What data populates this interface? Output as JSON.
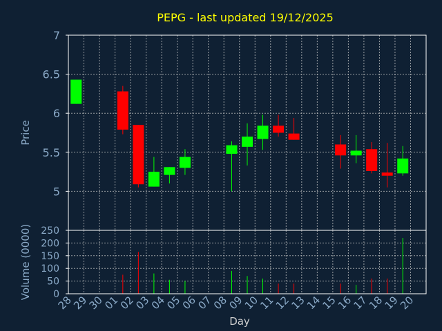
{
  "title": "PEPG - last updated 19/12/2025",
  "colors": {
    "background": "#0f2033",
    "plot_border": "#ffffff",
    "grid": "#c8c8c8",
    "title": "#ffff00",
    "axis_text": "#8aa9c7",
    "up": "#00ff00",
    "down": "#ff0000"
  },
  "chart_data": [
    {
      "type": "candlestick",
      "ylabel": "Price",
      "ylim": [
        4.5,
        7
      ],
      "yticks": [
        5,
        5.5,
        6,
        6.5,
        7
      ],
      "ytick_labels": [
        "5",
        "5.5",
        "6",
        "6.5",
        "7"
      ],
      "grid": true,
      "x_labels": [
        "28",
        "29",
        "30",
        "01",
        "02",
        "03",
        "04",
        "05",
        "06",
        "07",
        "08",
        "09",
        "10",
        "11",
        "12",
        "13",
        "14",
        "15",
        "16",
        "17",
        "18",
        "19",
        "20"
      ],
      "candles": [
        {
          "x": "28",
          "open": 6.12,
          "high": 6.43,
          "low": 6.12,
          "close": 6.43
        },
        {
          "x": "01",
          "open": 6.28,
          "high": 6.35,
          "low": 5.73,
          "close": 5.79
        },
        {
          "x": "02",
          "open": 5.85,
          "high": 5.85,
          "low": 5.05,
          "close": 5.09
        },
        {
          "x": "03",
          "open": 5.06,
          "high": 5.44,
          "low": 5.06,
          "close": 5.25
        },
        {
          "x": "04",
          "open": 5.21,
          "high": 5.31,
          "low": 5.1,
          "close": 5.31
        },
        {
          "x": "05",
          "open": 5.3,
          "high": 5.54,
          "low": 5.21,
          "close": 5.44
        },
        {
          "x": "08",
          "open": 5.48,
          "high": 5.64,
          "low": 5.0,
          "close": 5.59
        },
        {
          "x": "09",
          "open": 5.57,
          "high": 5.87,
          "low": 5.33,
          "close": 5.7
        },
        {
          "x": "10",
          "open": 5.67,
          "high": 5.98,
          "low": 5.53,
          "close": 5.84
        },
        {
          "x": "11",
          "open": 5.84,
          "high": 5.98,
          "low": 5.7,
          "close": 5.75
        },
        {
          "x": "12",
          "open": 5.74,
          "high": 5.94,
          "low": 5.66,
          "close": 5.66
        },
        {
          "x": "15",
          "open": 5.6,
          "high": 5.72,
          "low": 5.29,
          "close": 5.46
        },
        {
          "x": "16",
          "open": 5.46,
          "high": 5.72,
          "low": 5.36,
          "close": 5.52
        },
        {
          "x": "17",
          "open": 5.54,
          "high": 5.63,
          "low": 5.23,
          "close": 5.26
        },
        {
          "x": "18",
          "open": 5.24,
          "high": 5.62,
          "low": 5.05,
          "close": 5.2
        },
        {
          "x": "19",
          "open": 5.23,
          "high": 5.58,
          "low": 5.2,
          "close": 5.42
        }
      ]
    },
    {
      "type": "bar",
      "ylabel": "Volume (0000)",
      "xlabel": "Day",
      "ylim": [
        0,
        250
      ],
      "yticks": [
        0,
        50,
        100,
        150,
        200,
        250
      ],
      "ytick_labels": [
        "0",
        "50",
        "100",
        "150",
        "200",
        "250"
      ],
      "grid": true,
      "x_labels": [
        "28",
        "29",
        "30",
        "01",
        "02",
        "03",
        "04",
        "05",
        "06",
        "07",
        "08",
        "09",
        "10",
        "11",
        "12",
        "13",
        "14",
        "15",
        "16",
        "17",
        "18",
        "19",
        "20"
      ],
      "bars": [
        {
          "x": "28",
          "value": 0,
          "dir": "up"
        },
        {
          "x": "01",
          "value": 75,
          "dir": "down"
        },
        {
          "x": "02",
          "value": 165,
          "dir": "down"
        },
        {
          "x": "03",
          "value": 80,
          "dir": "up"
        },
        {
          "x": "04",
          "value": 55,
          "dir": "up"
        },
        {
          "x": "05",
          "value": 50,
          "dir": "up"
        },
        {
          "x": "08",
          "value": 90,
          "dir": "up"
        },
        {
          "x": "09",
          "value": 70,
          "dir": "up"
        },
        {
          "x": "10",
          "value": 60,
          "dir": "up"
        },
        {
          "x": "11",
          "value": 40,
          "dir": "down"
        },
        {
          "x": "12",
          "value": 40,
          "dir": "down"
        },
        {
          "x": "15",
          "value": 40,
          "dir": "down"
        },
        {
          "x": "16",
          "value": 35,
          "dir": "up"
        },
        {
          "x": "17",
          "value": 60,
          "dir": "down"
        },
        {
          "x": "18",
          "value": 60,
          "dir": "down"
        },
        {
          "x": "19",
          "value": 220,
          "dir": "up"
        }
      ]
    }
  ]
}
